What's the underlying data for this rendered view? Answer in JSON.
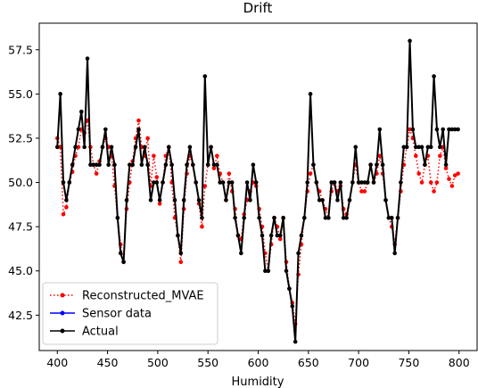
{
  "chart_data": {
    "type": "line",
    "title": "Drift",
    "xlabel": "Humidity",
    "ylabel": "",
    "xlim": [
      382,
      818
    ],
    "ylim": [
      40.5,
      59.0
    ],
    "xticks": [
      400,
      450,
      500,
      550,
      600,
      650,
      700,
      750,
      800
    ],
    "yticks": [
      42.5,
      45.0,
      47.5,
      50.0,
      52.5,
      55.0,
      57.5
    ],
    "ytick_labels": [
      "42.5",
      "45.0",
      "47.5",
      "50.0",
      "52.5",
      "55.0",
      "57.5"
    ],
    "grid": false,
    "legend": "lower-left",
    "series": [
      {
        "name": "Reconstructed_MVAE",
        "color": "#ff0000",
        "style": "dotted",
        "marker": "circle",
        "x": [
          400,
          403,
          406,
          409,
          412,
          415,
          418,
          421,
          424,
          427,
          430,
          433,
          436,
          439,
          442,
          445,
          448,
          451,
          454,
          457,
          460,
          463,
          466,
          469,
          472,
          475,
          478,
          481,
          484,
          487,
          490,
          493,
          496,
          499,
          502,
          505,
          508,
          511,
          514,
          517,
          520,
          523,
          526,
          529,
          532,
          535,
          538,
          541,
          544,
          547,
          550,
          553,
          556,
          559,
          562,
          565,
          568,
          571,
          574,
          577,
          580,
          583,
          586,
          589,
          592,
          595,
          598,
          601,
          604,
          607,
          610,
          613,
          616,
          619,
          622,
          625,
          628,
          631,
          634,
          637,
          640,
          643,
          646,
          649,
          652,
          655,
          658,
          661,
          664,
          667,
          670,
          673,
          676,
          679,
          682,
          685,
          688,
          691,
          694,
          697,
          700,
          703,
          706,
          709,
          712,
          715,
          718,
          721,
          724,
          727,
          730,
          733,
          736,
          739,
          742,
          745,
          748,
          751,
          754,
          757,
          760,
          763,
          766,
          769,
          772,
          775,
          778,
          781,
          784,
          787,
          790,
          793,
          796,
          799
        ],
        "y": [
          52.5,
          52.0,
          48.2,
          48.6,
          50.0,
          50.6,
          51.5,
          52.0,
          53.0,
          52.8,
          53.5,
          52.0,
          51.0,
          50.5,
          51.2,
          52.0,
          52.5,
          52.0,
          51.5,
          49.8,
          48.0,
          46.5,
          45.5,
          48.5,
          50.0,
          51.2,
          52.5,
          53.5,
          52.0,
          51.5,
          52.5,
          49.8,
          51.5,
          50.3,
          48.8,
          50.0,
          51.5,
          52.0,
          50.0,
          48.0,
          47.0,
          45.5,
          48.5,
          50.5,
          51.5,
          51.0,
          50.0,
          48.8,
          47.5,
          49.8,
          51.0,
          52.0,
          50.8,
          51.5,
          50.5,
          50.0,
          49.0,
          50.5,
          49.5,
          48.5,
          47.0,
          46.8,
          48.2,
          49.0,
          49.5,
          50.0,
          49.8,
          48.5,
          47.5,
          46.0,
          45.0,
          46.5,
          48.0,
          47.5,
          46.8,
          48.0,
          45.5,
          44.0,
          43.2,
          42.0,
          44.8,
          46.5,
          48.0,
          49.5,
          50.5,
          51.0,
          50.0,
          49.5,
          49.0,
          48.5,
          48.0,
          49.5,
          50.0,
          49.5,
          49.8,
          48.5,
          48.2,
          49.0,
          50.0,
          51.0,
          50.0,
          49.5,
          49.5,
          50.0,
          51.0,
          50.0,
          50.5,
          51.5,
          50.5,
          49.0,
          48.0,
          47.5,
          46.5,
          48.0,
          49.5,
          51.0,
          52.0,
          53.0,
          52.5,
          51.5,
          50.5,
          50.0,
          51.0,
          51.5,
          50.0,
          49.5,
          50.0,
          51.5,
          52.0,
          50.8,
          50.2,
          49.8,
          50.4,
          50.5
        ]
      },
      {
        "name": "Sensor data",
        "color": "#0000ff",
        "style": "solid",
        "marker": "circle",
        "x": [],
        "y": []
      },
      {
        "name": "Actual",
        "color": "#000000",
        "style": "solid",
        "marker": "circle",
        "x": [
          400,
          403,
          406,
          409,
          412,
          415,
          418,
          421,
          424,
          427,
          430,
          433,
          436,
          439,
          442,
          445,
          448,
          451,
          454,
          457,
          460,
          463,
          466,
          469,
          472,
          475,
          478,
          481,
          484,
          487,
          490,
          493,
          496,
          499,
          502,
          505,
          508,
          511,
          514,
          517,
          520,
          523,
          526,
          529,
          532,
          535,
          538,
          541,
          544,
          547,
          550,
          553,
          556,
          559,
          562,
          565,
          568,
          571,
          574,
          577,
          580,
          583,
          586,
          589,
          592,
          595,
          598,
          601,
          604,
          607,
          610,
          613,
          616,
          619,
          622,
          625,
          628,
          631,
          634,
          637,
          640,
          643,
          646,
          649,
          652,
          655,
          658,
          661,
          664,
          667,
          670,
          673,
          676,
          679,
          682,
          685,
          688,
          691,
          694,
          697,
          700,
          703,
          706,
          709,
          712,
          715,
          718,
          721,
          724,
          727,
          730,
          733,
          736,
          739,
          742,
          745,
          748,
          751,
          754,
          757,
          760,
          763,
          766,
          769,
          772,
          775,
          778,
          781,
          784,
          787,
          790,
          793,
          796,
          799
        ],
        "y": [
          52.0,
          55.0,
          50.0,
          49.0,
          50.0,
          51.0,
          52.0,
          53.0,
          54.0,
          52.0,
          57.0,
          51.0,
          51.0,
          51.0,
          51.0,
          52.0,
          53.0,
          51.0,
          52.0,
          51.0,
          48.0,
          46.0,
          45.5,
          49.0,
          51.0,
          51.0,
          52.0,
          53.0,
          51.0,
          52.0,
          51.0,
          49.0,
          50.0,
          50.0,
          49.0,
          50.0,
          51.0,
          52.0,
          51.0,
          49.0,
          47.0,
          46.0,
          49.0,
          51.0,
          52.0,
          51.0,
          50.0,
          49.0,
          48.0,
          56.0,
          51.0,
          52.0,
          51.0,
          51.0,
          50.0,
          50.0,
          49.0,
          50.0,
          50.0,
          48.0,
          47.0,
          46.0,
          48.0,
          50.0,
          49.0,
          51.0,
          50.0,
          48.0,
          47.0,
          45.0,
          45.0,
          47.0,
          48.0,
          47.0,
          47.0,
          48.0,
          45.0,
          44.0,
          43.0,
          41.0,
          46.0,
          47.0,
          48.0,
          50.0,
          55.0,
          51.0,
          50.0,
          49.0,
          49.0,
          48.0,
          48.0,
          50.0,
          50.0,
          49.0,
          50.0,
          48.0,
          48.0,
          49.0,
          50.0,
          52.0,
          50.0,
          50.0,
          50.0,
          50.0,
          51.0,
          50.0,
          51.0,
          53.0,
          51.0,
          49.0,
          48.0,
          48.0,
          46.0,
          48.0,
          50.0,
          52.0,
          52.0,
          58.0,
          53.0,
          52.0,
          52.0,
          52.0,
          51.0,
          52.0,
          52.0,
          56.0,
          53.0,
          52.0,
          53.0,
          51.0,
          53.0,
          53.0,
          53.0,
          53.0
        ]
      }
    ]
  }
}
